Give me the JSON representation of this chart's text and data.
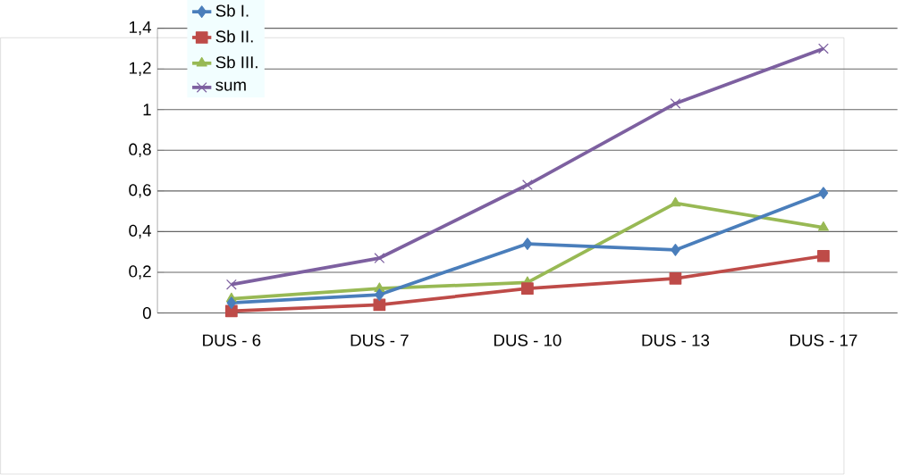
{
  "chart_data": {
    "type": "line",
    "categories": [
      "DUS - 6",
      "DUS - 7",
      "DUS - 10",
      "DUS - 13",
      "DUS - 17"
    ],
    "series": [
      {
        "name": "Sb I.",
        "color": "#4a7ebb",
        "marker": "diamond",
        "values": [
          0.05,
          0.09,
          0.34,
          0.31,
          0.59
        ]
      },
      {
        "name": "Sb II.",
        "color": "#be4b48",
        "marker": "square",
        "values": [
          0.01,
          0.04,
          0.12,
          0.17,
          0.28
        ]
      },
      {
        "name": "Sb III.",
        "color": "#98b954",
        "marker": "triangle",
        "values": [
          0.07,
          0.12,
          0.15,
          0.54,
          0.42
        ]
      },
      {
        "name": "sum",
        "color": "#7d60a0",
        "marker": "cross",
        "values": [
          0.14,
          0.27,
          0.63,
          1.03,
          1.3
        ]
      }
    ],
    "ylim": [
      0,
      1.4
    ],
    "yticks": [
      0,
      {
        "value": 0.2,
        "label": "0,2"
      },
      {
        "value": 0.4,
        "label": "0,4"
      },
      {
        "value": 0.6,
        "label": "0,6"
      },
      {
        "value": 0.8,
        "label": "0,8"
      },
      1,
      {
        "value": 1.2,
        "label": "1,2"
      },
      {
        "value": 1.4,
        "label": "1,4"
      }
    ],
    "grid": "y",
    "legend": "top left"
  }
}
